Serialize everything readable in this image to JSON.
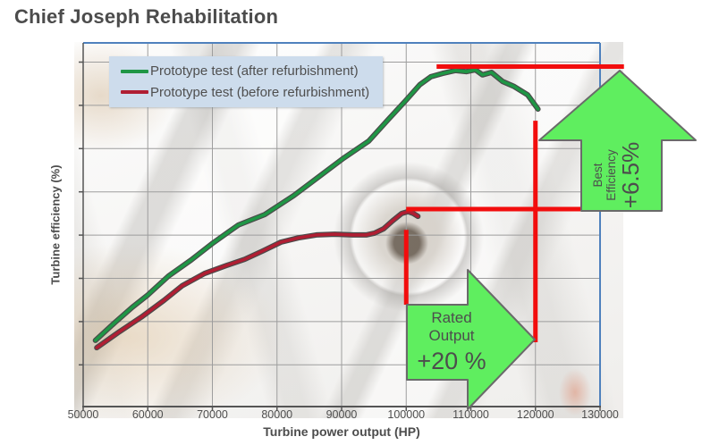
{
  "slide": {
    "title": "Chief Joseph Rehabilitation"
  },
  "chart": {
    "xlabel": "Turbine power output (HP)",
    "ylabel": "Turbine efficiency (%)",
    "x_tick_labels": [
      "50000",
      "60000",
      "70000",
      "80000",
      "90000",
      "100000",
      "110000",
      "120000",
      "130000"
    ],
    "legend": [
      {
        "label": "Prototype test (after refurbishment)",
        "color": "#1f9645"
      },
      {
        "label": "Prototype test (before refurbishment)",
        "color": "#b01e33"
      }
    ],
    "legend_bg": "#cddcec",
    "grid_color": "#9d9d9d",
    "border_blue": "#4f81bd",
    "axis_dark": "#555555"
  },
  "annotations": {
    "best": {
      "line1": "Best",
      "line2": "Efficiency",
      "value": "+6.5%"
    },
    "rated": {
      "line1": "Rated",
      "line2": "Output",
      "value": "+20 %"
    },
    "arrow_fill": "#5fee5f",
    "arrow_stroke": "#6a6a6a",
    "line_color": "#f20d0d"
  },
  "chart_data": {
    "type": "line",
    "title": "Chief Joseph Rehabilitation",
    "xlabel": "Turbine power output (HP)",
    "ylabel": "Turbine efficiency (%)",
    "x_ticks": [
      50000,
      60000,
      70000,
      80000,
      90000,
      100000,
      110000,
      120000,
      130000
    ],
    "xlim": [
      50000,
      130000
    ],
    "y_axis_note": "y axis has no numeric tick labels; y values below are relative efficiency in % of axis height",
    "ylim_relative": [
      0,
      100
    ],
    "grid": true,
    "legend_position": "top-left inside plot",
    "series": [
      {
        "name": "Prototype test (after refurbishment)",
        "color": "#1f9645",
        "points_hp_vs_rel_eff": [
          [
            51900,
            18.2
          ],
          [
            54900,
            23.1
          ],
          [
            57600,
            27.3
          ],
          [
            60000,
            30.7
          ],
          [
            63200,
            35.9
          ],
          [
            66700,
            40.3
          ],
          [
            70100,
            45.0
          ],
          [
            74000,
            49.9
          ],
          [
            78100,
            52.8
          ],
          [
            82600,
            58.0
          ],
          [
            86400,
            63.1
          ],
          [
            90300,
            68.3
          ],
          [
            94200,
            73.0
          ],
          [
            97200,
            78.9
          ],
          [
            100000,
            84.3
          ],
          [
            102100,
            88.5
          ],
          [
            103800,
            90.7
          ],
          [
            105600,
            91.6
          ],
          [
            107600,
            92.4
          ],
          [
            109300,
            92.1
          ],
          [
            110700,
            92.6
          ],
          [
            111800,
            91.2
          ],
          [
            113200,
            91.9
          ],
          [
            114900,
            89.4
          ],
          [
            116700,
            88.0
          ],
          [
            118800,
            85.7
          ],
          [
            120400,
            81.8
          ]
        ]
      },
      {
        "name": "Prototype test (before refurbishment)",
        "color": "#b01e33",
        "points_hp_vs_rel_eff": [
          [
            52100,
            16.2
          ],
          [
            55600,
            20.6
          ],
          [
            59000,
            24.6
          ],
          [
            62500,
            29.2
          ],
          [
            65300,
            33.2
          ],
          [
            68800,
            36.6
          ],
          [
            72200,
            38.8
          ],
          [
            75000,
            40.5
          ],
          [
            77800,
            42.8
          ],
          [
            80600,
            45.2
          ],
          [
            83300,
            46.4
          ],
          [
            86100,
            47.2
          ],
          [
            88900,
            47.4
          ],
          [
            91700,
            47.2
          ],
          [
            93800,
            47.2
          ],
          [
            95100,
            47.7
          ],
          [
            96500,
            48.9
          ],
          [
            97900,
            51.1
          ],
          [
            99300,
            53.1
          ],
          [
            100300,
            53.6
          ],
          [
            101100,
            53.1
          ],
          [
            101800,
            52.3
          ]
        ]
      }
    ],
    "annotations": [
      {
        "type": "hline",
        "meaning": "best efficiency after refurbishment",
        "y_rel": 93.5,
        "x_from_hp": 104700,
        "x_to_hp": 133700,
        "color": "#f20d0d"
      },
      {
        "type": "hline",
        "meaning": "best efficiency before refurbishment",
        "y_rel": 54.3,
        "x_from_hp": 100000,
        "x_to_hp": 133000,
        "color": "#f20d0d"
      },
      {
        "type": "vline",
        "meaning": "rated output before (100000 HP)",
        "x_hp": 100000,
        "y_rel_from": 28.0,
        "y_rel_to": 48.6,
        "color": "#f20d0d"
      },
      {
        "type": "vline",
        "meaning": "output after refurbishment (120000 HP)",
        "x_hp": 120000,
        "y_rel_from": 17.7,
        "y_rel_to": 78.6,
        "color": "#f20d0d"
      },
      {
        "type": "arrow-up",
        "label": "Best Efficiency +6.5%",
        "fill": "#5fee5f"
      },
      {
        "type": "arrow-right",
        "label": "Rated Output +20 %",
        "fill": "#5fee5f"
      }
    ]
  }
}
